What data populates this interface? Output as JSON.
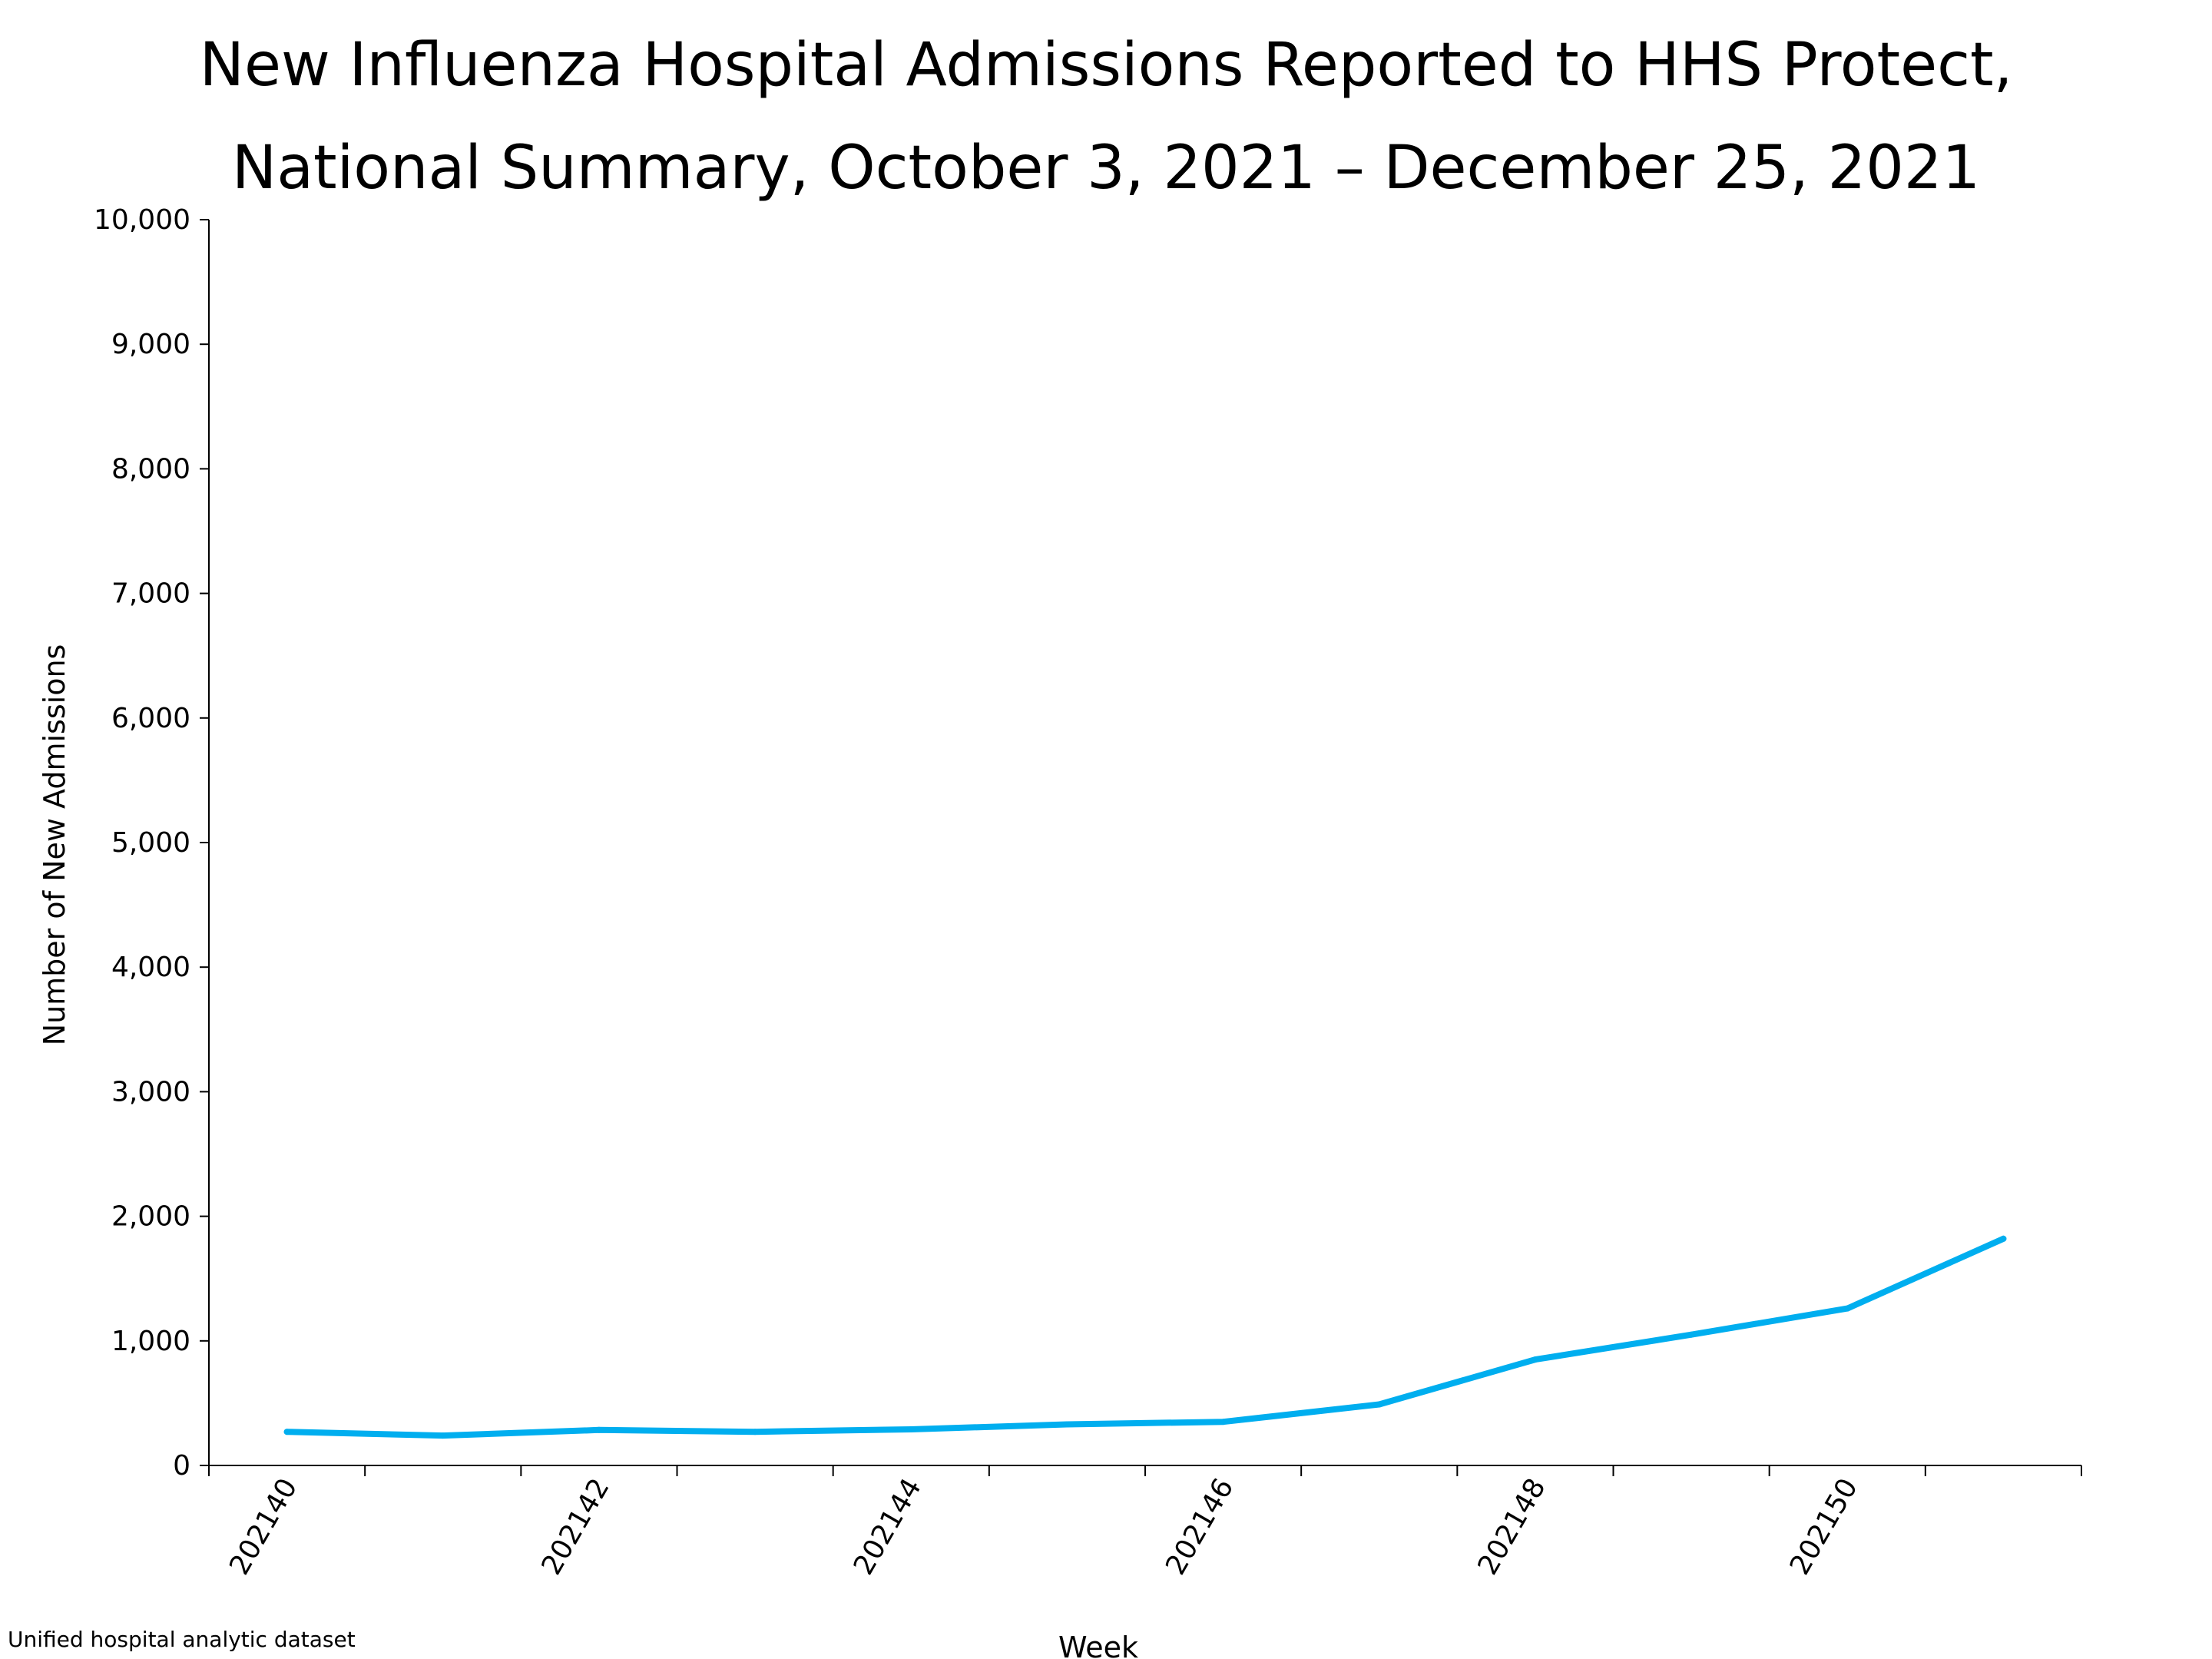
{
  "chart_data": {
    "type": "line",
    "title_lines": [
      "New Influenza Hospital Admissions Reported to HHS Protect,",
      "National Summary, October 3, 2021 – December 25, 2021"
    ],
    "xlabel": "Week",
    "ylabel": "Number of New Admissions",
    "ylim": [
      0,
      10000
    ],
    "y_ticks": [
      "0",
      "1,000",
      "2,000",
      "3,000",
      "4,000",
      "5,000",
      "6,000",
      "7,000",
      "8,000",
      "9,000",
      "10,000"
    ],
    "x_tick_labels": [
      "202140",
      "202142",
      "202144",
      "202146",
      "202148",
      "202150"
    ],
    "x": [
      "202140",
      "202141",
      "202142",
      "202143",
      "202144",
      "202145",
      "202146",
      "202147",
      "202148",
      "202149",
      "202150",
      "202151"
    ],
    "series": [
      {
        "values": [
          270,
          240,
          285,
          270,
          290,
          330,
          350,
          490,
          850,
          1050,
          1260,
          1820
        ],
        "color": "#00AEEF"
      }
    ],
    "grid": false,
    "legend": "none"
  },
  "source_note": "Unified hospital analytic dataset"
}
